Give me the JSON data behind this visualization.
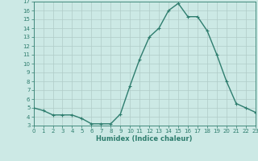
{
  "x": [
    0,
    1,
    2,
    3,
    4,
    5,
    6,
    7,
    8,
    9,
    10,
    11,
    12,
    13,
    14,
    15,
    16,
    17,
    18,
    19,
    20,
    21,
    22,
    23
  ],
  "y": [
    5.0,
    4.7,
    4.2,
    4.2,
    4.2,
    3.8,
    3.2,
    3.2,
    3.2,
    4.3,
    7.5,
    10.5,
    13.0,
    14.0,
    16.0,
    16.8,
    15.3,
    15.3,
    13.7,
    11.0,
    8.0,
    5.5,
    5.0,
    4.5
  ],
  "line_color": "#2e7d6e",
  "marker": "+",
  "marker_size": 3,
  "marker_linewidth": 0.8,
  "line_width": 1.0,
  "background_color": "#cce9e5",
  "grid_color": "#b0ccc8",
  "xlabel": "Humidex (Indice chaleur)",
  "ylim": [
    3,
    17
  ],
  "xlim": [
    0,
    23
  ],
  "yticks": [
    3,
    4,
    5,
    6,
    7,
    8,
    9,
    10,
    11,
    12,
    13,
    14,
    15,
    16,
    17
  ],
  "xticks": [
    0,
    1,
    2,
    3,
    4,
    5,
    6,
    7,
    8,
    9,
    10,
    11,
    12,
    13,
    14,
    15,
    16,
    17,
    18,
    19,
    20,
    21,
    22,
    23
  ],
  "xlabel_fontsize": 6.0,
  "tick_fontsize": 5.0
}
